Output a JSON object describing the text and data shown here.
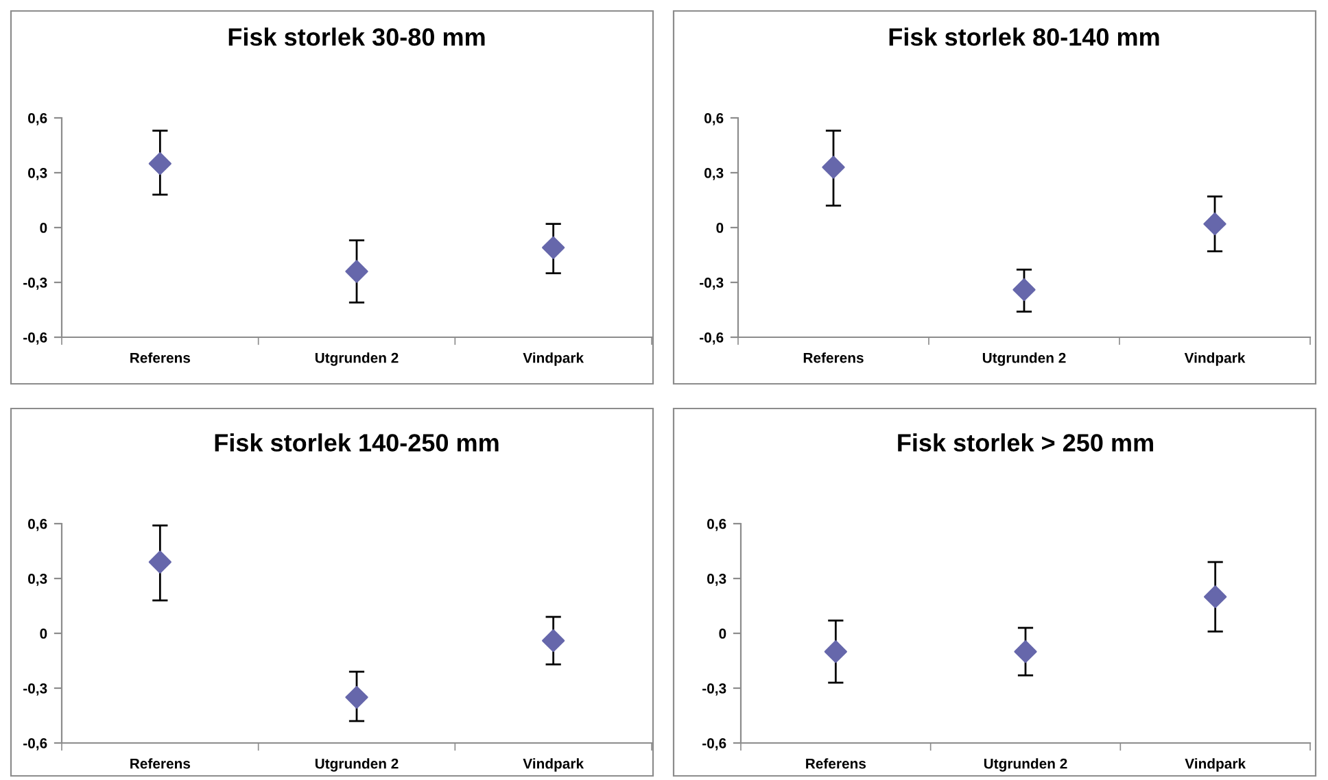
{
  "chart_data": [
    {
      "type": "scatter",
      "title": "Fisk storlek 30-80 mm",
      "categories": [
        "Referens",
        "Utgrunden 2",
        "Vindpark"
      ],
      "marker": "diamond",
      "ylim": [
        -0.6,
        0.6
      ],
      "yticks": [
        {
          "value": -0.6,
          "label": "-0,6"
        },
        {
          "value": -0.3,
          "label": "-0,3"
        },
        0,
        {
          "value": 0.3,
          "label": "0,3"
        },
        {
          "value": 0.6,
          "label": "0,6"
        }
      ],
      "series": [
        {
          "color": "#6667ab",
          "values": [
            0.35,
            -0.24,
            -0.11
          ],
          "errors": [
            [
              0.18,
              0.53
            ],
            [
              -0.41,
              -0.07
            ],
            [
              -0.25,
              0.02
            ]
          ]
        }
      ]
    },
    {
      "type": "scatter",
      "title": "Fisk storlek 80-140 mm",
      "categories": [
        "Referens",
        "Utgrunden 2",
        "Vindpark"
      ],
      "marker": "diamond",
      "ylim": [
        -0.6,
        0.6
      ],
      "yticks": [
        {
          "value": -0.6,
          "label": "-0,6"
        },
        {
          "value": -0.3,
          "label": "-0,3"
        },
        0,
        {
          "value": 0.3,
          "label": "0,3"
        },
        {
          "value": 0.6,
          "label": "0,6"
        }
      ],
      "series": [
        {
          "color": "#6667ab",
          "values": [
            0.33,
            -0.34,
            0.02
          ],
          "errors": [
            [
              0.12,
              0.53
            ],
            [
              -0.46,
              -0.23
            ],
            [
              -0.13,
              0.17
            ]
          ]
        }
      ]
    },
    {
      "type": "scatter",
      "title": "Fisk storlek 140-250 mm",
      "categories": [
        "Referens",
        "Utgrunden 2",
        "Vindpark"
      ],
      "marker": "diamond",
      "ylim": [
        -0.6,
        0.6
      ],
      "yticks": [
        {
          "value": -0.6,
          "label": "-0,6"
        },
        {
          "value": -0.3,
          "label": "-0,3"
        },
        0,
        {
          "value": 0.3,
          "label": "0,3"
        },
        {
          "value": 0.6,
          "label": "0,6"
        }
      ],
      "series": [
        {
          "color": "#6667ab",
          "values": [
            0.39,
            -0.35,
            -0.04
          ],
          "errors": [
            [
              0.18,
              0.59
            ],
            [
              -0.48,
              -0.21
            ],
            [
              -0.17,
              0.09
            ]
          ]
        }
      ]
    },
    {
      "type": "scatter",
      "title": "Fisk storlek > 250 mm",
      "categories": [
        "Referens",
        "Utgrunden 2",
        "Vindpark"
      ],
      "marker": "diamond",
      "ylim": [
        -0.6,
        0.6
      ],
      "yticks": [
        {
          "value": -0.6,
          "label": "-0,6"
        },
        {
          "value": -0.3,
          "label": "-0,3"
        },
        0,
        {
          "value": 0.3,
          "label": "0,3"
        },
        {
          "value": 0.6,
          "label": "0,6"
        }
      ],
      "series": [
        {
          "color": "#6667ab",
          "values": [
            -0.1,
            -0.1,
            0.2
          ],
          "errors": [
            [
              -0.27,
              0.07
            ],
            [
              -0.23,
              0.03
            ],
            [
              0.01,
              0.39
            ]
          ]
        }
      ]
    }
  ]
}
